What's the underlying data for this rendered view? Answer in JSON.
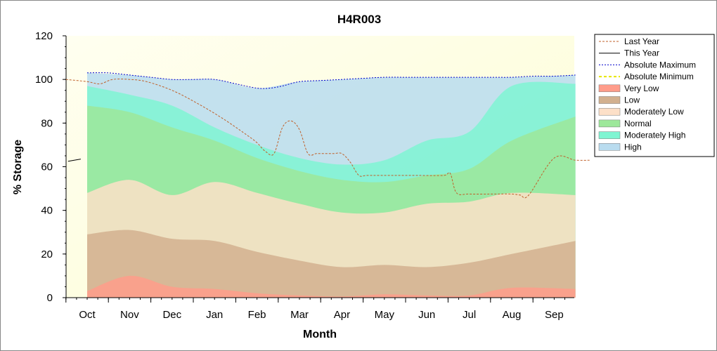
{
  "chart_data": {
    "type": "area",
    "title": "H4R003",
    "xlabel": "Month",
    "ylabel": "% Storage",
    "ylim": [
      0,
      120
    ],
    "yticks": [
      "0",
      "20",
      "40",
      "60",
      "80",
      "100",
      "120"
    ],
    "categories": [
      "Oct",
      "Nov",
      "Dec",
      "Jan",
      "Feb",
      "Mar",
      "Apr",
      "May",
      "Jun",
      "Jul",
      "Aug",
      "Sep"
    ],
    "legend_position": "right",
    "legend": [
      "Last Year",
      "This Year",
      "Absolute Maximum",
      "Absolute Minimum",
      "Very Low",
      "Low",
      "Moderately Low",
      "Normal",
      "Moderately High",
      "High"
    ],
    "bands": [
      {
        "name": "Very Low",
        "color": "#ff9c8a",
        "x": [
          0,
          1,
          2,
          3,
          4,
          5,
          6,
          7,
          8,
          9,
          10,
          11.5
        ],
        "values": [
          3,
          10,
          5,
          4,
          2,
          1,
          0.5,
          1.5,
          1,
          1,
          4.5,
          4
        ]
      },
      {
        "name": "Low",
        "color": "#d2b08f",
        "x": [
          0,
          1,
          2,
          3,
          4,
          5,
          6,
          7,
          8,
          9,
          10,
          11.5
        ],
        "values": [
          29,
          31,
          27,
          26,
          21,
          17,
          14,
          15,
          14,
          16,
          20,
          26
        ]
      },
      {
        "name": "Moderately Low",
        "color": "#fde0c8",
        "x": [
          0,
          1,
          2,
          3,
          4,
          5,
          6,
          7,
          8,
          9,
          10,
          11.5
        ],
        "values": [
          48,
          54,
          47,
          53,
          48,
          43,
          39,
          39,
          43,
          44,
          48,
          47
        ]
      },
      {
        "name": "Normal",
        "color": "#9de89a",
        "x": [
          0,
          1,
          2,
          3,
          4,
          5,
          6,
          7,
          8,
          9,
          10,
          11.5
        ],
        "values": [
          88,
          85,
          78,
          72,
          64,
          58,
          54,
          53,
          56,
          59,
          72,
          83
        ]
      },
      {
        "name": "Moderately High",
        "color": "#7ff5d2",
        "x": [
          0,
          1,
          2,
          3,
          4,
          5,
          6,
          7,
          8,
          9,
          10,
          11.5
        ],
        "values": [
          97,
          93,
          88,
          78,
          70,
          64,
          61,
          63,
          72,
          76,
          97,
          98
        ]
      },
      {
        "name": "High",
        "color": "#b9dcef",
        "x": [
          0,
          1,
          2,
          3,
          4,
          5,
          6,
          7,
          8,
          9,
          10,
          11.5
        ],
        "values": [
          103,
          102,
          100,
          100,
          96,
          99,
          100,
          101,
          101,
          101,
          101,
          102
        ]
      }
    ],
    "series": [
      {
        "name": "Last Year",
        "color": "#c0602a",
        "x": [
          -0.5,
          0,
          0.3,
          0.6,
          1.0,
          1.4,
          2.0,
          2.6,
          3.2,
          3.8,
          4.0,
          4.2,
          4.4,
          4.6,
          4.8,
          5.0,
          5.2,
          5.4,
          5.6,
          5.8,
          6.0,
          6.2,
          6.4,
          6.6,
          7.2,
          7.8,
          8.4,
          8.55,
          8.7,
          9.0,
          9.6,
          10.0,
          10.2,
          10.4,
          11.0,
          11.5,
          11.85
        ],
        "values": [
          100,
          99,
          98,
          100,
          100,
          99,
          95,
          89,
          82,
          74,
          71,
          67,
          66,
          78,
          81,
          77,
          66,
          66,
          66,
          66,
          66,
          62,
          56,
          56,
          56,
          56,
          56,
          57,
          48,
          47.5,
          47.5,
          47.5,
          47,
          47,
          64,
          63,
          63
        ]
      },
      {
        "name": "This Year",
        "color": "#000000",
        "x": [
          -0.45,
          -0.15
        ],
        "values": [
          62.5,
          63.5
        ]
      },
      {
        "name": "Absolute Maximum",
        "color": "#0000cc",
        "x": [
          0,
          0.5,
          1,
          1.5,
          2,
          2.5,
          3,
          3.5,
          4,
          4.3,
          4.6,
          5,
          5.5,
          6,
          6.5,
          7,
          7.5,
          8,
          8.5,
          9,
          9.5,
          10,
          10.5,
          11,
          11.5
        ],
        "values": [
          103,
          103,
          102,
          101,
          100,
          100,
          100,
          98,
          96,
          96,
          97,
          99,
          99.5,
          100,
          100.5,
          101,
          101,
          101,
          101,
          101,
          101,
          101,
          101.5,
          101.5,
          102
        ]
      },
      {
        "name": "Absolute Minimum",
        "color": "#e6e600",
        "x": [],
        "values": []
      }
    ]
  }
}
